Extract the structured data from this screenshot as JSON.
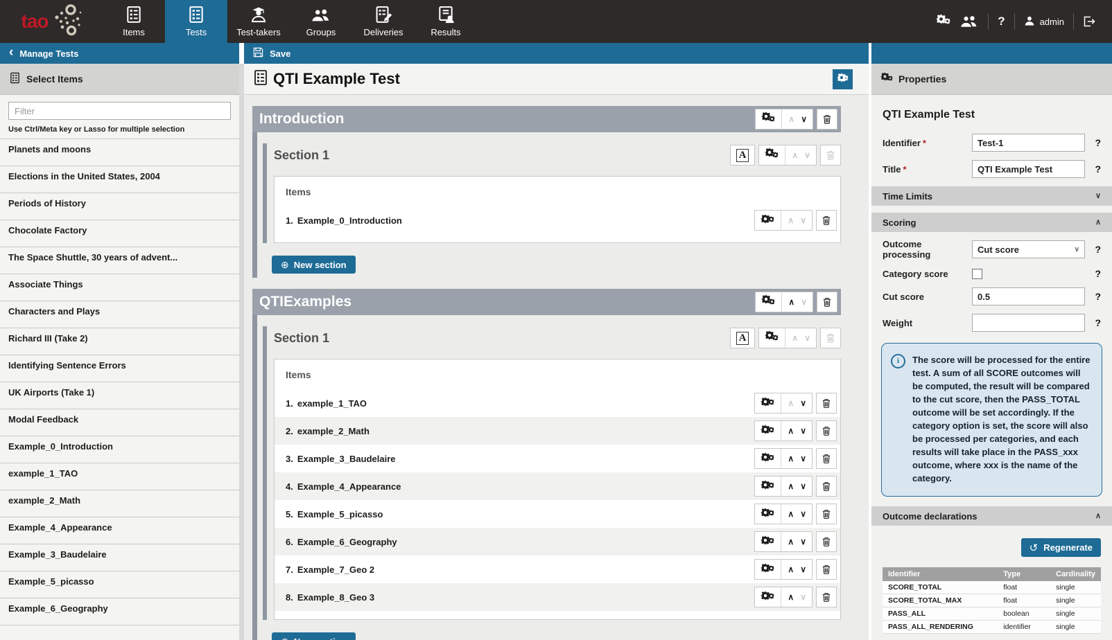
{
  "colors": {
    "accent": "#1e6b96",
    "nav_bg": "#2d2a29",
    "logo_red": "#c01826",
    "part_gray": "#9aa1ab",
    "info_bg": "#d9e6f0",
    "info_border": "#266d9b"
  },
  "nav": {
    "logo_text": "tao",
    "items": [
      {
        "label": "Items",
        "icon": "list",
        "active": false
      },
      {
        "label": "Tests",
        "icon": "list",
        "active": true
      },
      {
        "label": "Test-takers",
        "icon": "grad-person",
        "active": false
      },
      {
        "label": "Groups",
        "icon": "people",
        "active": false
      },
      {
        "label": "Deliveries",
        "icon": "list-pencil",
        "active": false
      },
      {
        "label": "Results",
        "icon": "list-person",
        "active": false
      }
    ],
    "help_label": "?",
    "user": "admin"
  },
  "left_panel": {
    "back_label": "Manage Tests",
    "header": "Select Items",
    "filter_placeholder": "Filter",
    "hint": "Use Ctrl/Meta key or Lasso for multiple selection",
    "items": [
      "Planets and moons",
      "Elections in the United States, 2004",
      "Periods of History",
      "Chocolate Factory",
      "The Space Shuttle, 30 years of advent...",
      "Associate Things",
      "Characters and Plays",
      "Richard III (Take 2)",
      "Identifying Sentence Errors",
      "UK Airports (Take 1)",
      "Modal Feedback",
      "Example_0_Introduction",
      "example_1_TAO",
      "example_2_Math",
      "Example_4_Appearance",
      "Example_3_Baudelaire",
      "Example_5_picasso",
      "Example_6_Geography"
    ]
  },
  "main": {
    "save_label": "Save",
    "test_title": "QTI Example Test",
    "new_section_label": "New section",
    "items_label": "Items",
    "parts": [
      {
        "title": "Introduction",
        "up": false,
        "down": true,
        "trash": true,
        "sections": [
          {
            "title": "Section 1",
            "items": [
              {
                "label": "Example_0_Introduction",
                "up": false,
                "down": false,
                "trash": true
              }
            ]
          }
        ]
      },
      {
        "title": "QTIExamples",
        "up": true,
        "down": false,
        "trash": true,
        "sections": [
          {
            "title": "Section 1",
            "items": [
              {
                "label": "example_1_TAO",
                "up": false,
                "down": true,
                "trash": true
              },
              {
                "label": "example_2_Math",
                "up": true,
                "down": true,
                "trash": true
              },
              {
                "label": "Example_3_Baudelaire",
                "up": true,
                "down": true,
                "trash": true
              },
              {
                "label": "Example_4_Appearance",
                "up": true,
                "down": true,
                "trash": true
              },
              {
                "label": "Example_5_picasso",
                "up": true,
                "down": true,
                "trash": true
              },
              {
                "label": "Example_6_Geography",
                "up": true,
                "down": true,
                "trash": true
              },
              {
                "label": "Example_7_Geo 2",
                "up": true,
                "down": true,
                "trash": true
              },
              {
                "label": "Example_8_Geo 3",
                "up": true,
                "down": false,
                "trash": true
              }
            ]
          }
        ]
      }
    ]
  },
  "properties": {
    "header": "Properties",
    "panel_title": "QTI Example Test",
    "identifier_label": "Identifier",
    "identifier_value": "Test-1",
    "title_label": "Title",
    "title_value": "QTI Example Test",
    "required_mark": "*",
    "help_mark": "?",
    "time_limits_label": "Time Limits",
    "scoring_label": "Scoring",
    "outcome_processing_label": "Outcome processing",
    "outcome_processing_value": "Cut score",
    "category_score_label": "Category score",
    "cut_score_label": "Cut score",
    "cut_score_value": "0.5",
    "weight_label": "Weight",
    "weight_value": "",
    "info_text": "The score will be processed for the entire test. A sum of all SCORE outcomes will be computed, the result will be compared to the cut score, then the PASS_TOTAL outcome will be set accordingly. If the category option is set, the score will also be processed per categories, and each results will take place in the PASS_xxx outcome, where xxx is the name of the category.",
    "outcome_declarations_label": "Outcome declarations",
    "regenerate_label": "Regenerate",
    "table": {
      "headers": [
        "Identifier",
        "Type",
        "Cardinality"
      ],
      "rows": [
        [
          "SCORE_TOTAL",
          "float",
          "single"
        ],
        [
          "SCORE_TOTAL_MAX",
          "float",
          "single"
        ],
        [
          "PASS_ALL",
          "boolean",
          "single"
        ],
        [
          "PASS_ALL_RENDERING",
          "identifier",
          "single"
        ]
      ]
    }
  }
}
